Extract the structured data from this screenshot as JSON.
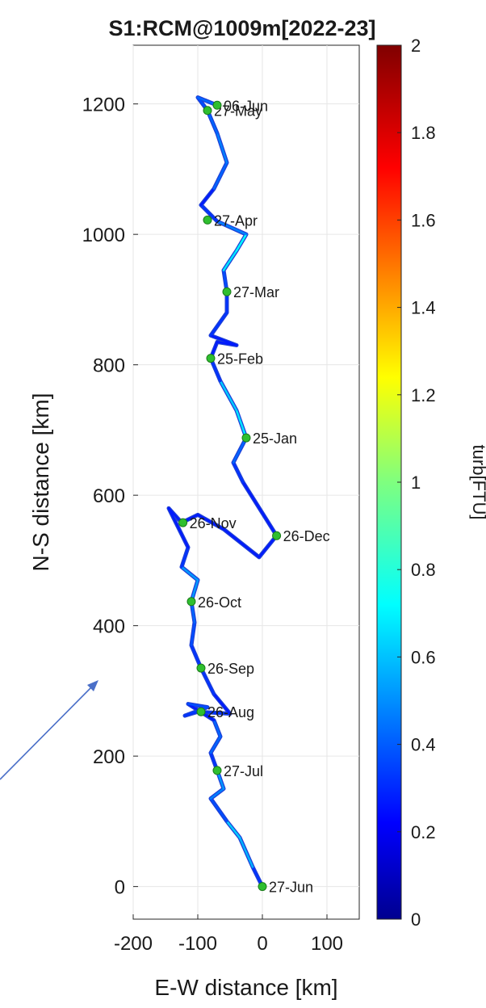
{
  "chart_data": {
    "type": "line",
    "title": "S1:RCM@1009m[2022-23]",
    "xlabel": "E-W distance [km]",
    "ylabel": "N-S distance [km]",
    "xlim": [
      -200,
      150
    ],
    "ylim": [
      -50,
      1290
    ],
    "grid": true,
    "xticks": [
      -200,
      -100,
      0,
      100
    ],
    "yticks": [
      0,
      200,
      400,
      600,
      800,
      1000,
      1200
    ],
    "colorbar": {
      "label": "turb[FTU]",
      "range": [
        0,
        2
      ],
      "ticks": [
        0,
        0.2,
        0.4,
        0.6,
        0.8,
        1,
        1.2,
        1.4,
        1.6,
        1.8,
        2
      ],
      "colormap": "jet"
    },
    "track": [
      {
        "x": 0,
        "y": 0,
        "turb": 0.3
      },
      {
        "x": -15,
        "y": 30,
        "turb": 0.4
      },
      {
        "x": -35,
        "y": 75,
        "turb": 0.8
      },
      {
        "x": -55,
        "y": 100,
        "turb": 0.5
      },
      {
        "x": -80,
        "y": 135,
        "turb": 0.3
      },
      {
        "x": -60,
        "y": 150,
        "turb": 0.7
      },
      {
        "x": -70,
        "y": 178,
        "turb": 0.4
      },
      {
        "x": -80,
        "y": 205,
        "turb": 0.3
      },
      {
        "x": -65,
        "y": 230,
        "turb": 0.6
      },
      {
        "x": -75,
        "y": 255,
        "turb": 0.3
      },
      {
        "x": -115,
        "y": 280,
        "turb": 0.3
      },
      {
        "x": -85,
        "y": 275,
        "turb": 0.5
      },
      {
        "x": -120,
        "y": 262,
        "turb": 0.3
      },
      {
        "x": -100,
        "y": 268,
        "turb": 0.4
      },
      {
        "x": -50,
        "y": 265,
        "turb": 0.3
      },
      {
        "x": -75,
        "y": 295,
        "turb": 0.3
      },
      {
        "x": -95,
        "y": 335,
        "turb": 0.4
      },
      {
        "x": -110,
        "y": 370,
        "turb": 0.3
      },
      {
        "x": -105,
        "y": 405,
        "turb": 0.5
      },
      {
        "x": -110,
        "y": 437,
        "turb": 0.4
      },
      {
        "x": -100,
        "y": 470,
        "turb": 0.7
      },
      {
        "x": -125,
        "y": 490,
        "turb": 0.4
      },
      {
        "x": -115,
        "y": 520,
        "turb": 0.3
      },
      {
        "x": -145,
        "y": 580,
        "turb": 0.3
      },
      {
        "x": -125,
        "y": 558,
        "turb": 0.3
      },
      {
        "x": -100,
        "y": 570,
        "turb": 0.3
      },
      {
        "x": -60,
        "y": 548,
        "turb": 0.3
      },
      {
        "x": -5,
        "y": 505,
        "turb": 0.3
      },
      {
        "x": 22,
        "y": 538,
        "turb": 0.3
      },
      {
        "x": -30,
        "y": 620,
        "turb": 0.3
      },
      {
        "x": -45,
        "y": 650,
        "turb": 0.4
      },
      {
        "x": -25,
        "y": 688,
        "turb": 0.5
      },
      {
        "x": -40,
        "y": 730,
        "turb": 0.9
      },
      {
        "x": -65,
        "y": 775,
        "turb": 0.4
      },
      {
        "x": -80,
        "y": 810,
        "turb": 0.3
      },
      {
        "x": -70,
        "y": 835,
        "turb": 0.3
      },
      {
        "x": -40,
        "y": 830,
        "turb": 0.3
      },
      {
        "x": -80,
        "y": 845,
        "turb": 0.3
      },
      {
        "x": -55,
        "y": 880,
        "turb": 0.4
      },
      {
        "x": -55,
        "y": 912,
        "turb": 0.3
      },
      {
        "x": -60,
        "y": 945,
        "turb": 0.5
      },
      {
        "x": -40,
        "y": 975,
        "turb": 0.9
      },
      {
        "x": -25,
        "y": 1000,
        "turb": 0.6
      },
      {
        "x": -70,
        "y": 1020,
        "turb": 0.4
      },
      {
        "x": -95,
        "y": 1045,
        "turb": 0.3
      },
      {
        "x": -75,
        "y": 1070,
        "turb": 0.3
      },
      {
        "x": -55,
        "y": 1110,
        "turb": 0.6
      },
      {
        "x": -70,
        "y": 1155,
        "turb": 0.4
      },
      {
        "x": -85,
        "y": 1190,
        "turb": 0.5
      },
      {
        "x": -100,
        "y": 1210,
        "turb": 0.3
      },
      {
        "x": -70,
        "y": 1198,
        "turb": 0.6
      }
    ],
    "markers": [
      {
        "label": "27-Jun",
        "x": 0,
        "y": 0
      },
      {
        "label": "27-Jul",
        "x": -70,
        "y": 178
      },
      {
        "label": "26-Aug",
        "x": -95,
        "y": 268
      },
      {
        "label": "26-Sep",
        "x": -95,
        "y": 335
      },
      {
        "label": "26-Oct",
        "x": -110,
        "y": 437
      },
      {
        "label": "26-Nov",
        "x": -123,
        "y": 558
      },
      {
        "label": "26-Dec",
        "x": 22,
        "y": 538
      },
      {
        "label": "25-Jan",
        "x": -25,
        "y": 688
      },
      {
        "label": "25-Feb",
        "x": -80,
        "y": 810
      },
      {
        "label": "27-Mar",
        "x": -55,
        "y": 912
      },
      {
        "label": "27-Apr",
        "x": -85,
        "y": 1022
      },
      {
        "label": "27-May",
        "x": -85,
        "y": 1190
      },
      {
        "label": "06-Jun",
        "x": -70,
        "y": 1198
      }
    ]
  },
  "colors": {
    "track_base": "#1f3fd6",
    "marker": "#2fbf2f",
    "arrow": "#4a6fc8",
    "grid": "#e6e6e6"
  }
}
